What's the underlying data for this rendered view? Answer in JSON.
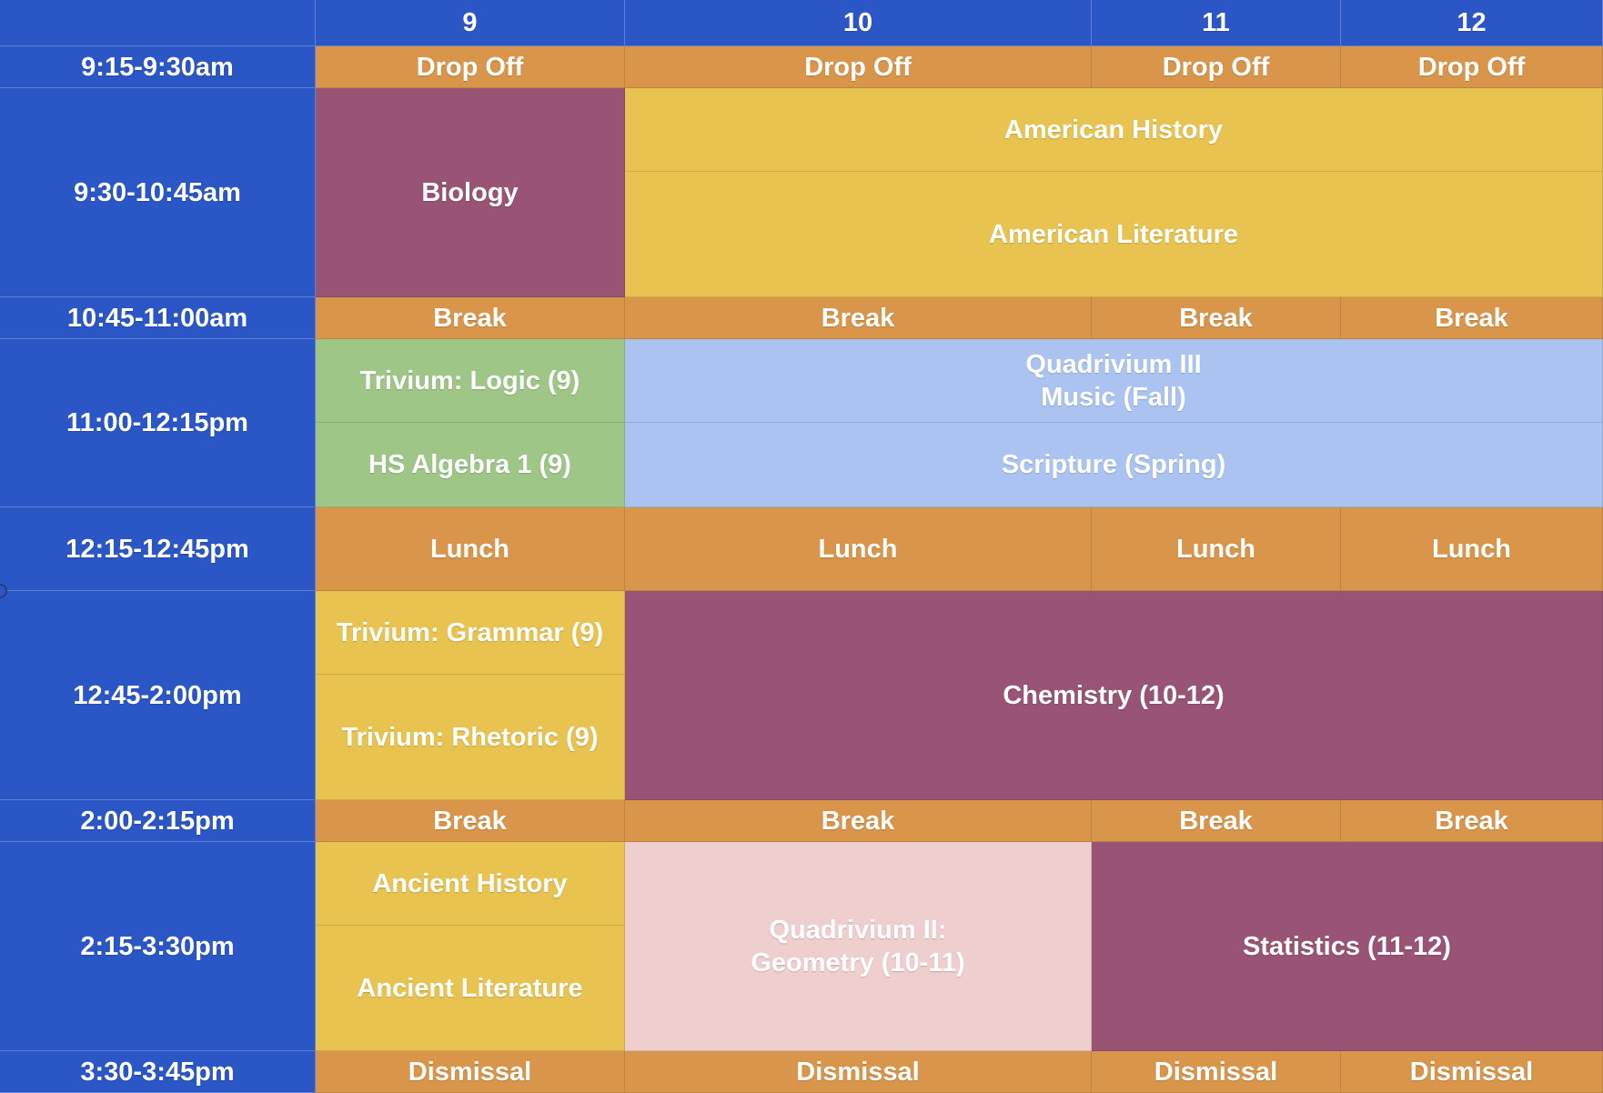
{
  "header": {
    "corner": "",
    "grades": [
      "9",
      "10",
      "11",
      "12"
    ]
  },
  "rows": [
    {
      "time": "9:15-9:30am",
      "cells": [
        "Drop Off",
        "Drop Off",
        "Drop Off",
        "Drop Off"
      ]
    },
    {
      "time": "9:30-10:45am",
      "grade9": "Biology",
      "upper_top": "American History",
      "upper_bottom": "American Literature"
    },
    {
      "time": "10:45-11:00am",
      "cells": [
        "Break",
        "Break",
        "Break",
        "Break"
      ]
    },
    {
      "time": "11:00-12:15pm",
      "grade9_top": "Trivium: Logic (9)",
      "grade9_bottom": "HS Algebra 1 (9)",
      "upper_top": "Quadrivium III\nMusic (Fall)",
      "upper_bottom": "Scripture (Spring)"
    },
    {
      "time": "12:15-12:45pm",
      "cells": [
        "Lunch",
        "Lunch",
        "Lunch",
        "Lunch"
      ]
    },
    {
      "time": "12:45-2:00pm",
      "grade9_top": "Trivium: Grammar (9)",
      "grade9_bottom": "Trivium: Rhetoric (9)",
      "upper": "Chemistry (10-12)"
    },
    {
      "time": "2:00-2:15pm",
      "cells": [
        "Break",
        "Break",
        "Break",
        "Break"
      ]
    },
    {
      "time": "2:15-3:30pm",
      "grade9_top": "Ancient History",
      "grade9_bottom": "Ancient Literature",
      "grade10": "Quadrivium II:\nGeometry (10-11)",
      "grade11_12": "Statistics (11-12)"
    },
    {
      "time": "3:30-3:45pm",
      "cells": [
        "Dismissal",
        "Dismissal",
        "Dismissal",
        "Dismissal"
      ]
    }
  ],
  "colors": {
    "header_blue": "#2a56c6",
    "transition_orange": "#d9964a",
    "purple": "#995475",
    "yellow": "#e8c350",
    "green": "#9ec686",
    "light_blue": "#aac3f1",
    "pink": "#efcece"
  }
}
